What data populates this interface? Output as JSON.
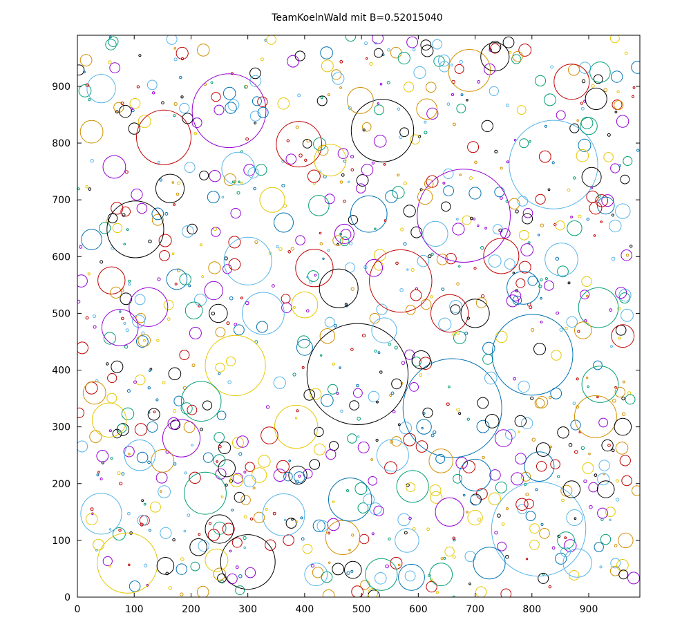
{
  "chart_data": {
    "type": "scatter",
    "title": "TeamKoelnWald mit B=0.52015040",
    "xlabel": "",
    "ylabel": "",
    "xlim": [
      0,
      990
    ],
    "ylim": [
      0,
      990
    ],
    "x_ticks": [
      0,
      100,
      200,
      300,
      400,
      500,
      600,
      700,
      800,
      900
    ],
    "y_ticks": [
      0,
      100,
      200,
      300,
      400,
      500,
      600,
      700,
      800,
      900
    ],
    "grid": false,
    "legend": "none",
    "palette": {
      "purple": "#9400d3",
      "green": "#009e73",
      "blue": "#56b4e9",
      "yellow": "#e6c700",
      "navy": "#0072b2",
      "orange": "#d18f00",
      "red": "#c00000",
      "black": "#000000"
    },
    "circles": [
      {
        "x": 493,
        "y": 393,
        "r": 89,
        "color": "black"
      },
      {
        "x": 660,
        "y": 333,
        "r": 87,
        "color": "navy"
      },
      {
        "x": 812,
        "y": 120,
        "r": 83,
        "color": "blue"
      },
      {
        "x": 680,
        "y": 672,
        "r": 82,
        "color": "purple"
      },
      {
        "x": 838,
        "y": 762,
        "r": 78,
        "color": "blue"
      },
      {
        "x": 801,
        "y": 427,
        "r": 71,
        "color": "navy"
      },
      {
        "x": 267,
        "y": 857,
        "r": 65,
        "color": "purple"
      },
      {
        "x": 569,
        "y": 557,
        "r": 55,
        "color": "red"
      },
      {
        "x": 88,
        "y": 60,
        "r": 53,
        "color": "yellow"
      },
      {
        "x": 278,
        "y": 408,
        "r": 53,
        "color": "yellow"
      },
      {
        "x": 102,
        "y": 648,
        "r": 50,
        "color": "black"
      },
      {
        "x": 152,
        "y": 810,
        "r": 48,
        "color": "red"
      },
      {
        "x": 300,
        "y": 62,
        "r": 48,
        "color": "black"
      },
      {
        "x": 537,
        "y": 822,
        "r": 55,
        "color": "black"
      },
      {
        "x": 912,
        "y": 318,
        "r": 37,
        "color": "orange"
      },
      {
        "x": 385,
        "y": 300,
        "r": 38,
        "color": "yellow"
      },
      {
        "x": 917,
        "y": 510,
        "r": 35,
        "color": "green"
      },
      {
        "x": 390,
        "y": 798,
        "r": 40,
        "color": "red"
      },
      {
        "x": 300,
        "y": 592,
        "r": 42,
        "color": "blue"
      },
      {
        "x": 270,
        "y": 862,
        "r": 10,
        "color": "navy"
      },
      {
        "x": 690,
        "y": 928,
        "r": 37,
        "color": "orange"
      },
      {
        "x": 870,
        "y": 908,
        "r": 31,
        "color": "red"
      },
      {
        "x": 56,
        "y": 312,
        "r": 30,
        "color": "yellow"
      },
      {
        "x": 42,
        "y": 147,
        "r": 36,
        "color": "blue"
      },
      {
        "x": 183,
        "y": 280,
        "r": 33,
        "color": "purple"
      },
      {
        "x": 175,
        "y": 560,
        "r": 18,
        "color": "navy"
      },
      {
        "x": 218,
        "y": 345,
        "r": 35,
        "color": "green"
      },
      {
        "x": 467,
        "y": 105,
        "r": 30,
        "color": "orange"
      },
      {
        "x": 480,
        "y": 172,
        "r": 38,
        "color": "navy"
      },
      {
        "x": 555,
        "y": 250,
        "r": 28,
        "color": "blue"
      },
      {
        "x": 225,
        "y": 183,
        "r": 37,
        "color": "green"
      },
      {
        "x": 363,
        "y": 145,
        "r": 37,
        "color": "blue"
      },
      {
        "x": 327,
        "y": 500,
        "r": 37,
        "color": "blue"
      },
      {
        "x": 417,
        "y": 580,
        "r": 33,
        "color": "red"
      },
      {
        "x": 460,
        "y": 544,
        "r": 34,
        "color": "black"
      },
      {
        "x": 655,
        "y": 500,
        "r": 33,
        "color": "red"
      },
      {
        "x": 746,
        "y": 601,
        "r": 31,
        "color": "red"
      },
      {
        "x": 852,
        "y": 595,
        "r": 29,
        "color": "blue"
      },
      {
        "x": 920,
        "y": 375,
        "r": 32,
        "color": "green"
      },
      {
        "x": 75,
        "y": 475,
        "r": 32,
        "color": "purple"
      },
      {
        "x": 125,
        "y": 511,
        "r": 34,
        "color": "purple"
      },
      {
        "x": 60,
        "y": 558,
        "r": 24,
        "color": "red"
      },
      {
        "x": 163,
        "y": 720,
        "r": 25,
        "color": "black"
      },
      {
        "x": 283,
        "y": 755,
        "r": 29,
        "color": "blue"
      },
      {
        "x": 400,
        "y": 515,
        "r": 23,
        "color": "yellow"
      },
      {
        "x": 513,
        "y": 675,
        "r": 32,
        "color": "navy"
      },
      {
        "x": 445,
        "y": 770,
        "r": 28,
        "color": "yellow"
      },
      {
        "x": 498,
        "y": 875,
        "r": 23,
        "color": "orange"
      },
      {
        "x": 735,
        "y": 952,
        "r": 25,
        "color": "black"
      },
      {
        "x": 913,
        "y": 878,
        "r": 19,
        "color": "black"
      },
      {
        "x": 920,
        "y": 925,
        "r": 18,
        "color": "green"
      },
      {
        "x": 615,
        "y": 860,
        "r": 18,
        "color": "orange"
      },
      {
        "x": 700,
        "y": 500,
        "r": 25,
        "color": "black"
      },
      {
        "x": 785,
        "y": 545,
        "r": 29,
        "color": "navy"
      },
      {
        "x": 813,
        "y": 230,
        "r": 26,
        "color": "navy"
      },
      {
        "x": 700,
        "y": 215,
        "r": 28,
        "color": "navy"
      },
      {
        "x": 630,
        "y": 640,
        "r": 22,
        "color": "blue"
      },
      {
        "x": 540,
        "y": 470,
        "r": 22,
        "color": "blue"
      },
      {
        "x": 590,
        "y": 195,
        "r": 28,
        "color": "green"
      },
      {
        "x": 640,
        "y": 240,
        "r": 21,
        "color": "orange"
      },
      {
        "x": 655,
        "y": 150,
        "r": 25,
        "color": "purple"
      },
      {
        "x": 580,
        "y": 100,
        "r": 21,
        "color": "blue"
      },
      {
        "x": 640,
        "y": 40,
        "r": 20,
        "color": "green"
      },
      {
        "x": 725,
        "y": 60,
        "r": 28,
        "color": "navy"
      },
      {
        "x": 880,
        "y": 60,
        "r": 25,
        "color": "blue"
      },
      {
        "x": 588,
        "y": 35,
        "r": 23,
        "color": "navy"
      },
      {
        "x": 535,
        "y": 40,
        "r": 28,
        "color": "green"
      },
      {
        "x": 420,
        "y": 40,
        "r": 20,
        "color": "blue"
      },
      {
        "x": 245,
        "y": 65,
        "r": 20,
        "color": "yellow"
      },
      {
        "x": 150,
        "y": 240,
        "r": 20,
        "color": "orange"
      },
      {
        "x": 110,
        "y": 250,
        "r": 27,
        "color": "blue"
      },
      {
        "x": 30,
        "y": 360,
        "r": 20,
        "color": "orange"
      },
      {
        "x": 25,
        "y": 630,
        "r": 18,
        "color": "navy"
      },
      {
        "x": 65,
        "y": 758,
        "r": 20,
        "color": "purple"
      },
      {
        "x": 42,
        "y": 896,
        "r": 25,
        "color": "blue"
      },
      {
        "x": 25,
        "y": 820,
        "r": 20,
        "color": "orange"
      },
      {
        "x": 343,
        "y": 700,
        "r": 22,
        "color": "yellow"
      },
      {
        "x": 363,
        "y": 660,
        "r": 17,
        "color": "navy"
      },
      {
        "x": 425,
        "y": 690,
        "r": 18,
        "color": "green"
      },
      {
        "x": 470,
        "y": 640,
        "r": 17,
        "color": "purple"
      },
      {
        "x": 612,
        "y": 705,
        "r": 13,
        "color": "orange"
      },
      {
        "x": 900,
        "y": 830,
        "r": 15,
        "color": "green"
      },
      {
        "x": 930,
        "y": 690,
        "r": 15,
        "color": "navy"
      },
      {
        "x": 905,
        "y": 740,
        "r": 17,
        "color": "black"
      },
      {
        "x": 875,
        "y": 650,
        "r": 13,
        "color": "green"
      },
      {
        "x": 960,
        "y": 680,
        "r": 13,
        "color": "blue"
      },
      {
        "x": 890,
        "y": 470,
        "r": 15,
        "color": "orange"
      },
      {
        "x": 960,
        "y": 460,
        "r": 20,
        "color": "red"
      },
      {
        "x": 960,
        "y": 300,
        "r": 15,
        "color": "black"
      },
      {
        "x": 930,
        "y": 190,
        "r": 15,
        "color": "black"
      },
      {
        "x": 965,
        "y": 100,
        "r": 13,
        "color": "orange"
      },
      {
        "x": 875,
        "y": 140,
        "r": 14,
        "color": "blue"
      },
      {
        "x": 860,
        "y": 100,
        "r": 15,
        "color": "green"
      },
      {
        "x": 820,
        "y": 260,
        "r": 12,
        "color": "black"
      },
      {
        "x": 750,
        "y": 280,
        "r": 15,
        "color": "purple"
      },
      {
        "x": 700,
        "y": 140,
        "r": 13,
        "color": "yellow"
      },
      {
        "x": 610,
        "y": 300,
        "r": 13,
        "color": "navy"
      },
      {
        "x": 522,
        "y": 580,
        "r": 15,
        "color": "purple"
      },
      {
        "x": 605,
        "y": 418,
        "r": 16,
        "color": "black"
      },
      {
        "x": 440,
        "y": 460,
        "r": 13,
        "color": "orange"
      },
      {
        "x": 400,
        "y": 440,
        "r": 14,
        "color": "navy"
      },
      {
        "x": 240,
        "y": 540,
        "r": 16,
        "color": "purple"
      },
      {
        "x": 205,
        "y": 505,
        "r": 15,
        "color": "green"
      },
      {
        "x": 248,
        "y": 500,
        "r": 16,
        "color": "black"
      },
      {
        "x": 263,
        "y": 227,
        "r": 15,
        "color": "black"
      },
      {
        "x": 388,
        "y": 215,
        "r": 16,
        "color": "black"
      },
      {
        "x": 338,
        "y": 285,
        "r": 15,
        "color": "red"
      },
      {
        "x": 320,
        "y": 215,
        "r": 13,
        "color": "yellow"
      },
      {
        "x": 213,
        "y": 88,
        "r": 15,
        "color": "black"
      },
      {
        "x": 250,
        "y": 120,
        "r": 25,
        "color": "black"
      },
      {
        "x": 155,
        "y": 55,
        "r": 15,
        "color": "black"
      },
      {
        "x": 485,
        "y": 48,
        "r": 15,
        "color": "black"
      },
      {
        "x": 870,
        "y": 190,
        "r": 15,
        "color": "black"
      },
      {
        "x": 855,
        "y": 290,
        "r": 10,
        "color": "black"
      },
      {
        "x": 780,
        "y": 310,
        "r": 10,
        "color": "black"
      },
      {
        "x": 730,
        "y": 310,
        "r": 12,
        "color": "black"
      },
      {
        "x": 190,
        "y": 560,
        "r": 10,
        "color": "green"
      }
    ]
  }
}
